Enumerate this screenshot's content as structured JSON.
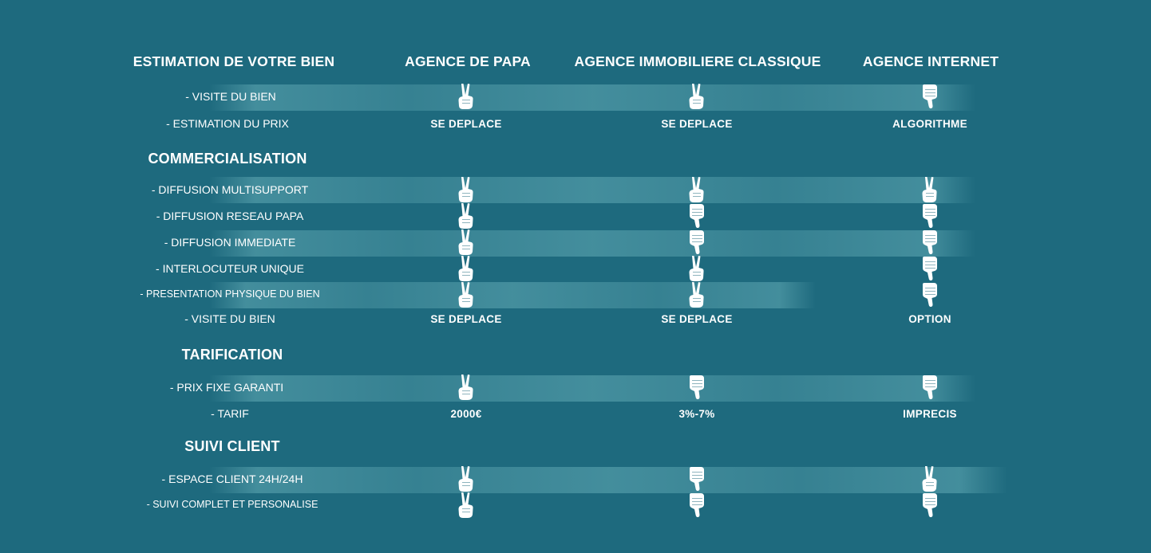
{
  "header": {
    "col0": "ESTIMATION DE VOTRE BIEN",
    "col1": "AGENCE DE PAPA",
    "col2": "AGENCE IMMOBILIERE CLASSIQUE",
    "col3": "AGENCE INTERNET"
  },
  "sections": {
    "commercialisation": "COMMERCIALISATION",
    "tarification": "TARIFICATION",
    "suivi": "SUIVI CLIENT"
  },
  "rows": [
    {
      "label": "- VISITE DU BIEN",
      "values": [
        "victory",
        "victory",
        "thumb-down"
      ]
    },
    {
      "label": "- ESTIMATION DU PRIX",
      "values": [
        "SE DEPLACE",
        "SE DEPLACE",
        "ALGORITHME"
      ]
    },
    {
      "label": "- DIFFUSION MULTISUPPORT",
      "values": [
        "victory",
        "victory",
        "victory"
      ]
    },
    {
      "label": "- DIFFUSION RESEAU PAPA",
      "values": [
        "victory",
        "thumb-down",
        "thumb-down"
      ]
    },
    {
      "label": "- DIFFUSION IMMEDIATE",
      "values": [
        "victory",
        "thumb-down",
        "thumb-down"
      ]
    },
    {
      "label": "- INTERLOCUTEUR UNIQUE",
      "values": [
        "victory",
        "victory",
        "thumb-down"
      ]
    },
    {
      "label": "- PRESENTATION PHYSIQUE DU BIEN",
      "values": [
        "victory",
        "victory",
        "thumb-down"
      ]
    },
    {
      "label": "- VISITE DU BIEN",
      "values": [
        "SE DEPLACE",
        "SE DEPLACE",
        "OPTION"
      ]
    },
    {
      "label": "- PRIX FIXE GARANTI",
      "values": [
        "victory",
        "thumb-down",
        "thumb-down"
      ]
    },
    {
      "label": "- TARIF",
      "values": [
        "2000€",
        "3%-7%",
        "IMPRECIS"
      ]
    },
    {
      "label": "- ESPACE CLIENT 24H/24H",
      "values": [
        "victory",
        "thumb-down",
        "victory"
      ]
    },
    {
      "label": "- SUIVI COMPLET ET PERSONALISE",
      "values": [
        "victory",
        "thumb-down",
        "thumb-down"
      ]
    }
  ],
  "colors": {
    "background": "#1e6a7e",
    "band": "#4a94a2",
    "text": "#ffffff"
  }
}
